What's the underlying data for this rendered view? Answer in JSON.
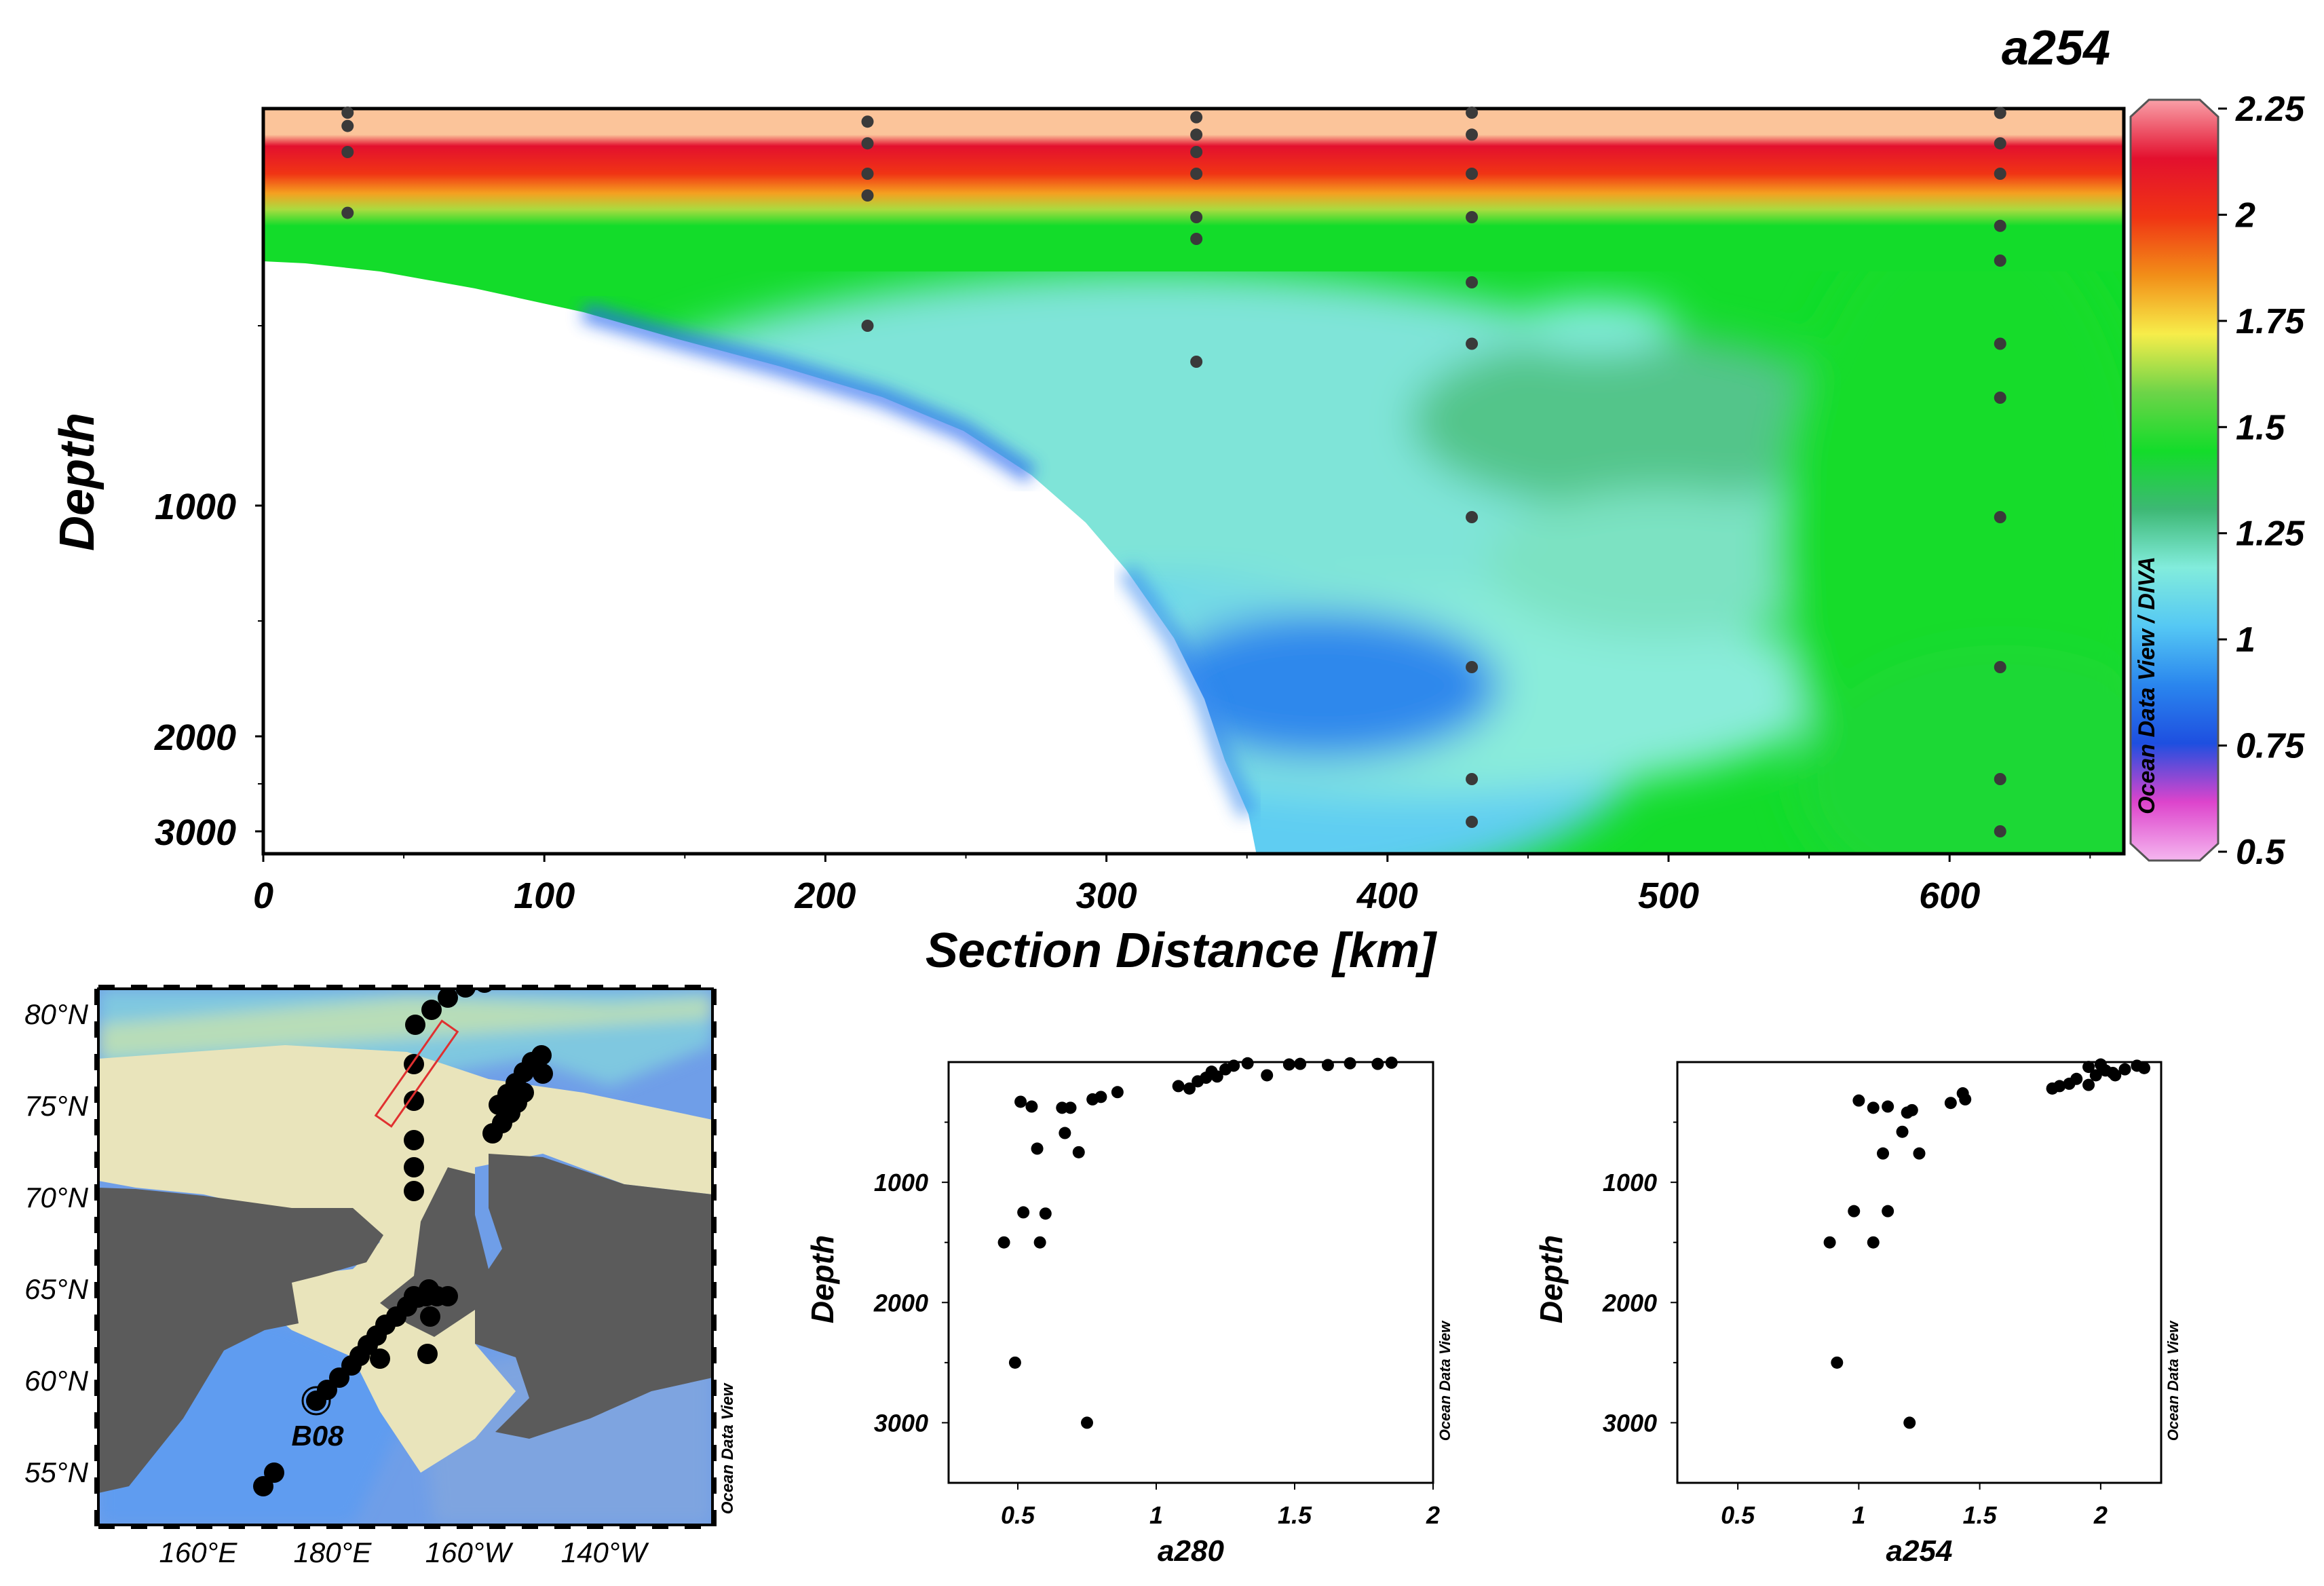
{
  "chart_data": [
    {
      "type": "heatmap",
      "title": "a254",
      "xlabel": "Section Distance [km]",
      "ylabel": "Depth",
      "x_ticks": [
        0,
        100,
        200,
        300,
        400,
        500,
        600
      ],
      "y_ticks": [
        1000,
        2000,
        3000
      ],
      "xlim": [
        0,
        662
      ],
      "color_scale": {
        "ticks": [
          "2.25",
          "2",
          "1.75",
          "1.5",
          "1.25",
          "1",
          "0.75",
          "0.5"
        ],
        "min": 0.5,
        "max": 2.25,
        "colors": [
          "#f5b6ef",
          "#dd44cc",
          "#1e4fe0",
          "#2a86ee",
          "#55c8f4",
          "#82ecdc",
          "#3db874",
          "#13dc2a",
          "#6dd448",
          "#f7ed4a",
          "#f28e18",
          "#f03414",
          "#e3102e",
          "#f9a0a8"
        ]
      },
      "credit": "Ocean Data View / DIVA",
      "stations": [
        {
          "x": 30,
          "depths": [
            5,
            40,
            100,
            240
          ]
        },
        {
          "x": 215,
          "depths": [
            30,
            80,
            150,
            200,
            500
          ]
        },
        {
          "x": 332,
          "depths": [
            20,
            60,
            100,
            150,
            250,
            300,
            600
          ]
        },
        {
          "x": 430,
          "depths": [
            5,
            60,
            150,
            250,
            400,
            550,
            1050,
            1700,
            2450,
            2900
          ]
        },
        {
          "x": 618,
          "depths": [
            10,
            80,
            150,
            270,
            350,
            550,
            700,
            1050,
            1700,
            2450,
            3000
          ]
        }
      ]
    },
    {
      "type": "scatter",
      "xlabel": "a280",
      "ylabel": "Depth",
      "x_ticks": [
        "0.5",
        "1",
        "1.5",
        "2"
      ],
      "y_ticks": [
        "1000",
        "2000",
        "3000"
      ],
      "xlim": [
        0.25,
        2.0
      ],
      "ylim": [
        3500,
        0
      ],
      "credit": "Ocean Data View",
      "points": [
        [
          0.51,
          330
        ],
        [
          0.55,
          370
        ],
        [
          0.57,
          720
        ],
        [
          0.66,
          380
        ],
        [
          0.69,
          380
        ],
        [
          0.67,
          590
        ],
        [
          0.72,
          750
        ],
        [
          0.52,
          1250
        ],
        [
          0.6,
          1260
        ],
        [
          0.45,
          1500
        ],
        [
          0.58,
          1500
        ],
        [
          0.49,
          2500
        ],
        [
          0.75,
          3000
        ],
        [
          0.77,
          310
        ],
        [
          0.8,
          290
        ],
        [
          0.86,
          250
        ],
        [
          1.08,
          200
        ],
        [
          1.12,
          220
        ],
        [
          1.15,
          160
        ],
        [
          1.18,
          130
        ],
        [
          1.2,
          80
        ],
        [
          1.22,
          120
        ],
        [
          1.25,
          60
        ],
        [
          1.28,
          30
        ],
        [
          1.33,
          10
        ],
        [
          1.4,
          110
        ],
        [
          1.48,
          20
        ],
        [
          1.52,
          15
        ],
        [
          1.62,
          25
        ],
        [
          1.7,
          10
        ],
        [
          1.8,
          15
        ],
        [
          1.85,
          5
        ]
      ]
    },
    {
      "type": "scatter",
      "xlabel": "a254",
      "ylabel": "Depth",
      "x_ticks": [
        "0.5",
        "1",
        "1.5",
        "2"
      ],
      "y_ticks": [
        "1000",
        "2000",
        "3000"
      ],
      "xlim": [
        0.25,
        2.25
      ],
      "ylim": [
        3500,
        0
      ],
      "credit": "Ocean Data View",
      "points": [
        [
          1.0,
          320
        ],
        [
          1.06,
          380
        ],
        [
          1.12,
          370
        ],
        [
          1.18,
          580
        ],
        [
          1.2,
          420
        ],
        [
          1.22,
          400
        ],
        [
          1.1,
          760
        ],
        [
          1.25,
          760
        ],
        [
          0.98,
          1240
        ],
        [
          1.12,
          1240
        ],
        [
          0.88,
          1500
        ],
        [
          1.06,
          1500
        ],
        [
          0.91,
          2500
        ],
        [
          1.21,
          3000
        ],
        [
          1.38,
          340
        ],
        [
          1.44,
          310
        ],
        [
          1.43,
          260
        ],
        [
          1.8,
          220
        ],
        [
          1.83,
          200
        ],
        [
          1.87,
          180
        ],
        [
          1.9,
          140
        ],
        [
          1.95,
          190
        ],
        [
          1.98,
          110
        ],
        [
          2.02,
          70
        ],
        [
          2.05,
          90
        ],
        [
          2.1,
          60
        ],
        [
          2.15,
          30
        ],
        [
          1.95,
          40
        ],
        [
          2.0,
          20
        ],
        [
          2.06,
          110
        ],
        [
          2.18,
          50
        ]
      ]
    }
  ],
  "map": {
    "lat_labels": [
      "80°N",
      "75°N",
      "70°N",
      "65°N",
      "60°N",
      "55°N"
    ],
    "lon_labels": [
      "160°E",
      "180°E",
      "160°W",
      "140°W"
    ],
    "station_label": "B08",
    "credit": "Ocean Data View"
  },
  "colors": {
    "land": "#5b5b5b",
    "shelf": "#e9e4bb",
    "ocean": "#6f9ee8"
  }
}
